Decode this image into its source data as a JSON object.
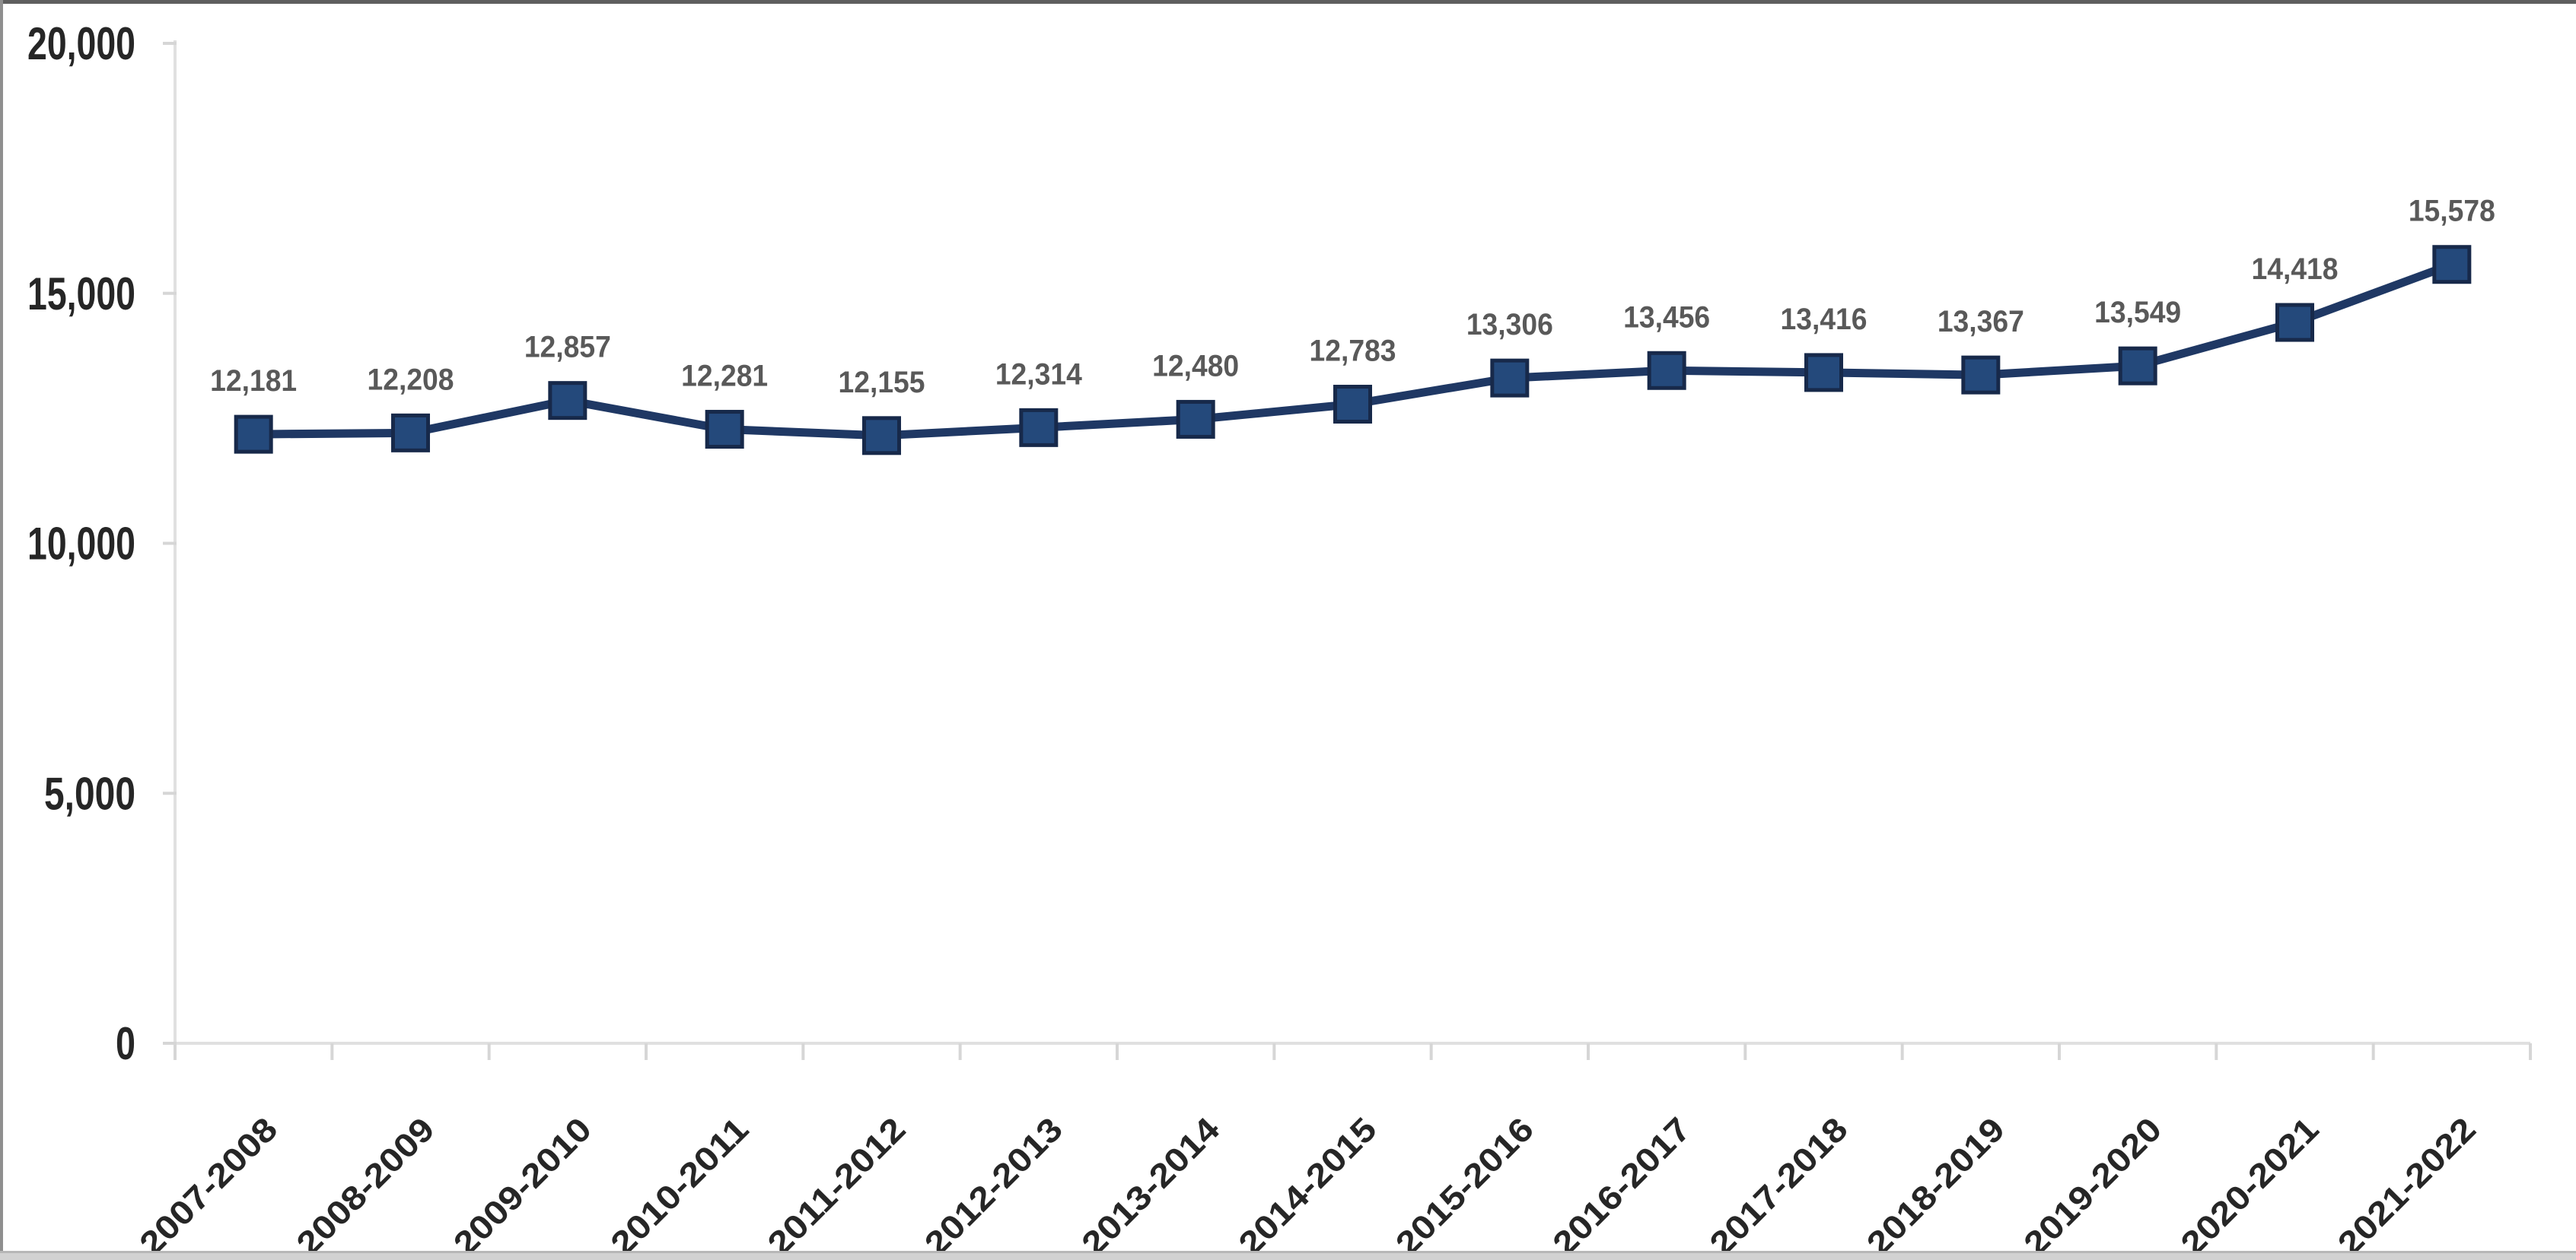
{
  "chart_data": {
    "type": "line",
    "title": "",
    "xlabel": "",
    "ylabel": "",
    "categories": [
      "2007-2008",
      "2008-2009",
      "2009-2010",
      "2010-2011",
      "2011-2012",
      "2012-2013",
      "2013-2014",
      "2014-2015",
      "2015-2016",
      "2016-2017",
      "2017-2018",
      "2018-2019",
      "2019-2020",
      "2020-2021",
      "2021-2022"
    ],
    "series": [
      {
        "name": "",
        "values": [
          12181,
          12208,
          12857,
          12281,
          12155,
          12314,
          12480,
          12783,
          13306,
          13456,
          13416,
          13367,
          13549,
          14418,
          15578
        ],
        "data_labels": [
          "12,181",
          "12,208",
          "12,857",
          "12,281",
          "12,155",
          "12,314",
          "12,480",
          "12,783",
          "13,306",
          "13,456",
          "13,416",
          "13,367",
          "13,549",
          "14,418",
          "15,578"
        ]
      }
    ],
    "ylim": [
      0,
      20000
    ],
    "y_ticks": [
      0,
      5000,
      10000,
      15000,
      20000
    ],
    "y_tick_labels": [
      "0",
      "5,000",
      "10,000",
      "15,000",
      "20,000"
    ],
    "grid": false,
    "legend_position": "none",
    "marker_shape": "square",
    "x_label_rotation_deg": -45,
    "colors": {
      "line": "#1F3864",
      "marker_fill": "#24497B",
      "marker_border": "#17294A",
      "data_label": "#595959",
      "axis_tick_label": "#262626",
      "axis_line": "#E0E0E0",
      "tick_mark": "#D6D6D6"
    }
  }
}
